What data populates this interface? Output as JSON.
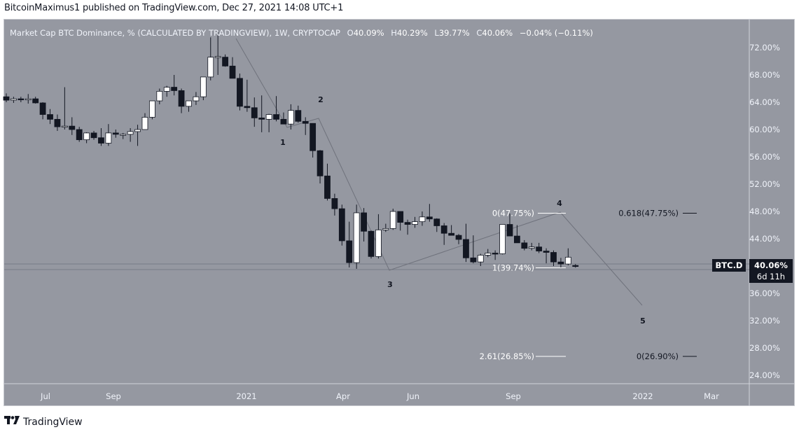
{
  "header": {
    "text": "BitcoinMaximus1 published on TradingView.com, Dec 27, 2021 14:08 UTC+1"
  },
  "legend": {
    "title": "Market Cap BTC Dominance, % (CALCULATED BY TRADINGVIEW), 1W, CRYPTOCAP",
    "o_label": "O",
    "o": "40.09%",
    "h_label": "H",
    "h": "40.29%",
    "l_label": "L",
    "l": "39.77%",
    "c_label": "C",
    "c": "40.06%",
    "change": "−0.04% (−0.11%)"
  },
  "price_axis": {
    "ticks": [
      "72.00%",
      "68.00%",
      "64.00%",
      "60.00%",
      "56.00%",
      "52.00%",
      "48.00%",
      "44.00%",
      "40.00%",
      "36.00%",
      "32.00%",
      "28.00%",
      "24.00%"
    ]
  },
  "time_axis": {
    "ticks": [
      "Jul",
      "Sep",
      "2021",
      "Apr",
      "Jun",
      "Sep",
      "2022",
      "Mar"
    ]
  },
  "last_price": {
    "symbol": "BTC.D",
    "value": "40.06%",
    "countdown": "6d 11h"
  },
  "annotations": {
    "wave_labels": [
      "1",
      "2",
      "3",
      "4",
      "5"
    ],
    "fib_left": {
      "top": "0(47.75%)",
      "bottom": "1(39.74%)",
      "ext": "2.61(26.85%)"
    },
    "fib_right": {
      "top": "0.618(47.75%)",
      "bottom": "0(26.90%)"
    }
  },
  "footer": {
    "brand": "TradingView",
    "logo": "TV"
  },
  "colors": {
    "bg": "#9598a1",
    "bull": "#ffffff",
    "bear": "#131722",
    "text_light": "#f0f3fa",
    "text_dark": "#131722"
  },
  "chart_data": {
    "type": "candlestick",
    "title": "Market Cap BTC Dominance, % (CALCULATED BY TRADINGVIEW), 1W, CRYPTOCAP",
    "xlabel": "",
    "ylabel": "%",
    "ylim": [
      22,
      75
    ],
    "x_ticks": [
      "Jul",
      "Sep",
      "2021",
      "Apr",
      "Jun",
      "Sep",
      "2022",
      "Mar"
    ],
    "y_ticks": [
      72,
      68,
      64,
      60,
      56,
      52,
      48,
      44,
      40,
      36,
      32,
      28,
      24
    ],
    "candles": [
      [
        64.8,
        65.3,
        64.0,
        64.3
      ],
      [
        64.3,
        64.8,
        63.9,
        64.5
      ],
      [
        64.5,
        64.8,
        64.0,
        64.4
      ],
      [
        64.4,
        65.2,
        63.8,
        64.5
      ],
      [
        64.5,
        64.8,
        63.8,
        63.9
      ],
      [
        63.9,
        64.0,
        61.5,
        62.2
      ],
      [
        62.2,
        63.0,
        60.8,
        61.5
      ],
      [
        61.5,
        62.2,
        59.8,
        60.4
      ],
      [
        60.4,
        66.2,
        60.0,
        60.5
      ],
      [
        60.5,
        61.8,
        59.2,
        60.0
      ],
      [
        60.0,
        60.4,
        58.2,
        58.5
      ],
      [
        58.5,
        59.6,
        58.0,
        59.5
      ],
      [
        59.5,
        59.8,
        58.5,
        58.8
      ],
      [
        58.8,
        60.2,
        57.6,
        58.0
      ],
      [
        58.0,
        60.8,
        57.6,
        59.5
      ],
      [
        59.5,
        60.0,
        58.8,
        59.3
      ],
      [
        59.3,
        59.5,
        58.6,
        59.3
      ],
      [
        59.3,
        60.2,
        58.2,
        59.7
      ],
      [
        59.7,
        60.7,
        57.6,
        60.0
      ],
      [
        60.0,
        62.4,
        60.0,
        61.8
      ],
      [
        61.8,
        64.0,
        61.5,
        64.2
      ],
      [
        64.2,
        66.0,
        63.7,
        65.6
      ],
      [
        65.6,
        66.4,
        64.8,
        66.2
      ],
      [
        66.2,
        68.0,
        65.0,
        65.7
      ],
      [
        65.7,
        66.0,
        62.4,
        63.4
      ],
      [
        63.4,
        64.2,
        62.6,
        64.2
      ],
      [
        64.2,
        65.5,
        63.6,
        64.8
      ],
      [
        64.8,
        67.4,
        64.3,
        67.7
      ],
      [
        67.7,
        73.5,
        67.2,
        70.6
      ],
      [
        70.6,
        74.4,
        68.0,
        70.7
      ],
      [
        70.6,
        71.0,
        69.2,
        69.3
      ],
      [
        69.3,
        70.6,
        67.8,
        67.5
      ],
      [
        67.5,
        68.2,
        62.8,
        63.4
      ],
      [
        63.4,
        67.3,
        62.6,
        63.2
      ],
      [
        63.2,
        64.7,
        60.4,
        61.7
      ],
      [
        61.7,
        65.0,
        59.6,
        61.5
      ],
      [
        61.5,
        62.3,
        59.6,
        62.2
      ],
      [
        62.2,
        64.9,
        61.2,
        61.5
      ],
      [
        61.5,
        62.5,
        60.8,
        60.8
      ],
      [
        60.8,
        63.7,
        60.0,
        62.8
      ],
      [
        62.8,
        63.5,
        61.0,
        61.2
      ],
      [
        61.2,
        61.8,
        59.2,
        60.9
      ],
      [
        60.9,
        60.9,
        55.9,
        56.9
      ],
      [
        56.9,
        57.0,
        52.1,
        53.2
      ],
      [
        53.2,
        55.0,
        49.6,
        49.9
      ],
      [
        49.9,
        50.6,
        47.4,
        48.4
      ],
      [
        48.4,
        49.0,
        43.0,
        43.7
      ],
      [
        43.7,
        46.5,
        39.8,
        40.5
      ],
      [
        40.5,
        49.0,
        39.6,
        47.8
      ],
      [
        47.8,
        48.5,
        43.6,
        45.1
      ],
      [
        45.1,
        45.2,
        41.1,
        41.4
      ],
      [
        41.4,
        47.6,
        41.1,
        45.3
      ],
      [
        45.3,
        46.2,
        45.0,
        45.5
      ],
      [
        45.5,
        48.4,
        45.3,
        48.0
      ],
      [
        48.0,
        48.0,
        45.2,
        46.4
      ],
      [
        46.4,
        46.8,
        44.6,
        46.1
      ],
      [
        46.1,
        47.2,
        45.6,
        46.5
      ],
      [
        46.5,
        48.0,
        45.9,
        47.2
      ],
      [
        47.2,
        49.1,
        46.5,
        46.9
      ],
      [
        46.9,
        47.0,
        45.0,
        45.9
      ],
      [
        45.9,
        46.3,
        43.1,
        44.8
      ],
      [
        44.8,
        46.0,
        44.7,
        44.5
      ],
      [
        44.5,
        44.7,
        43.2,
        43.9
      ],
      [
        43.9,
        46.2,
        40.6,
        41.2
      ],
      [
        41.2,
        44.5,
        40.4,
        40.6
      ],
      [
        40.6,
        41.8,
        40.0,
        41.6
      ],
      [
        41.6,
        42.5,
        41.3,
        41.9
      ],
      [
        41.9,
        42.3,
        40.9,
        41.8
      ],
      [
        41.8,
        45.2,
        41.7,
        46.1
      ],
      [
        46.1,
        47.7,
        44.4,
        44.4
      ],
      [
        44.4,
        46.0,
        43.4,
        43.4
      ],
      [
        43.4,
        43.8,
        42.3,
        42.6
      ],
      [
        42.6,
        43.4,
        42.3,
        42.8
      ],
      [
        42.8,
        43.4,
        41.9,
        42.2
      ],
      [
        42.2,
        42.6,
        40.4,
        42.0
      ],
      [
        42.0,
        42.3,
        40.0,
        40.6
      ],
      [
        40.6,
        41.2,
        39.7,
        40.3
      ],
      [
        40.3,
        42.6,
        40.1,
        41.3
      ],
      [
        40.09,
        40.29,
        39.77,
        40.06
      ]
    ],
    "fib_levels": [
      {
        "label": "0(47.75%)",
        "value": 47.75
      },
      {
        "label": "1(39.74%)",
        "value": 39.74
      },
      {
        "label": "2.61(26.85%)",
        "value": 26.85
      },
      {
        "label": "0.618(47.75%)",
        "value": 47.75
      },
      {
        "label": "0(26.90%)",
        "value": 26.9
      }
    ],
    "elliott_waves": [
      {
        "label": "1",
        "value": 59.6
      },
      {
        "label": "2",
        "value": 63.7
      },
      {
        "label": "3",
        "value": 39.6
      },
      {
        "label": "4",
        "value": 47.75
      },
      {
        "label": "5",
        "value": 34.5
      }
    ],
    "last_value": 40.06
  }
}
